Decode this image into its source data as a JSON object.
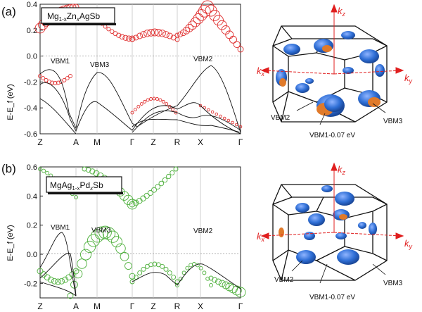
{
  "panels": [
    {
      "id": "a",
      "label": "(a)",
      "composition": {
        "base": "Mg",
        "sub1": "1-x",
        "mid": "Zn",
        "sub2": "x",
        "tail": "AgSb"
      },
      "ylabel": "E-E_f (eV)",
      "ylim": [
        -0.6,
        0.4
      ],
      "yticks": [
        "0.4",
        "0.2",
        "0.0",
        "-0.2",
        "-0.4",
        "-0.6"
      ],
      "kpoints": [
        "Z",
        "A",
        "M",
        "Γ",
        "Z",
        "R",
        "X",
        "Γ"
      ],
      "annotations": [
        "VBM1",
        "VBM3",
        "VBM2"
      ],
      "fat_color": "#e03030",
      "bz_labels": [
        "VBM2",
        "VBM1-0.07 eV",
        "VBM3"
      ]
    },
    {
      "id": "b",
      "label": "(b)",
      "composition": {
        "base": "MgAg",
        "sub1": "1-x",
        "mid": "Pd",
        "sub2": "x",
        "tail": "Sb"
      },
      "ylabel": "E-E_f (eV)",
      "ylim": [
        -0.3,
        0.6
      ],
      "yticks": [
        "0.6",
        "0.4",
        "0.2",
        "0.0",
        "-0.2"
      ],
      "kpoints": [
        "Z",
        "A",
        "M",
        "Γ",
        "Z",
        "R",
        "X",
        "Γ"
      ],
      "annotations": [
        "VBM1",
        "VBM3",
        "VBM2"
      ],
      "fat_color": "#4caf3a",
      "bz_labels": [
        "VBM2",
        "VBM1-0.07 eV",
        "VBM3"
      ]
    }
  ],
  "kaxes": {
    "kz": "k",
    "kz_sub": "z",
    "kx": "k",
    "kx_sub": "x",
    "ky": "k",
    "ky_sub": "y"
  },
  "colors": {
    "fermi_blue": "#2f6fd6",
    "fermi_orange": "#e07a2a",
    "axis_red": "#e01e1e"
  }
}
